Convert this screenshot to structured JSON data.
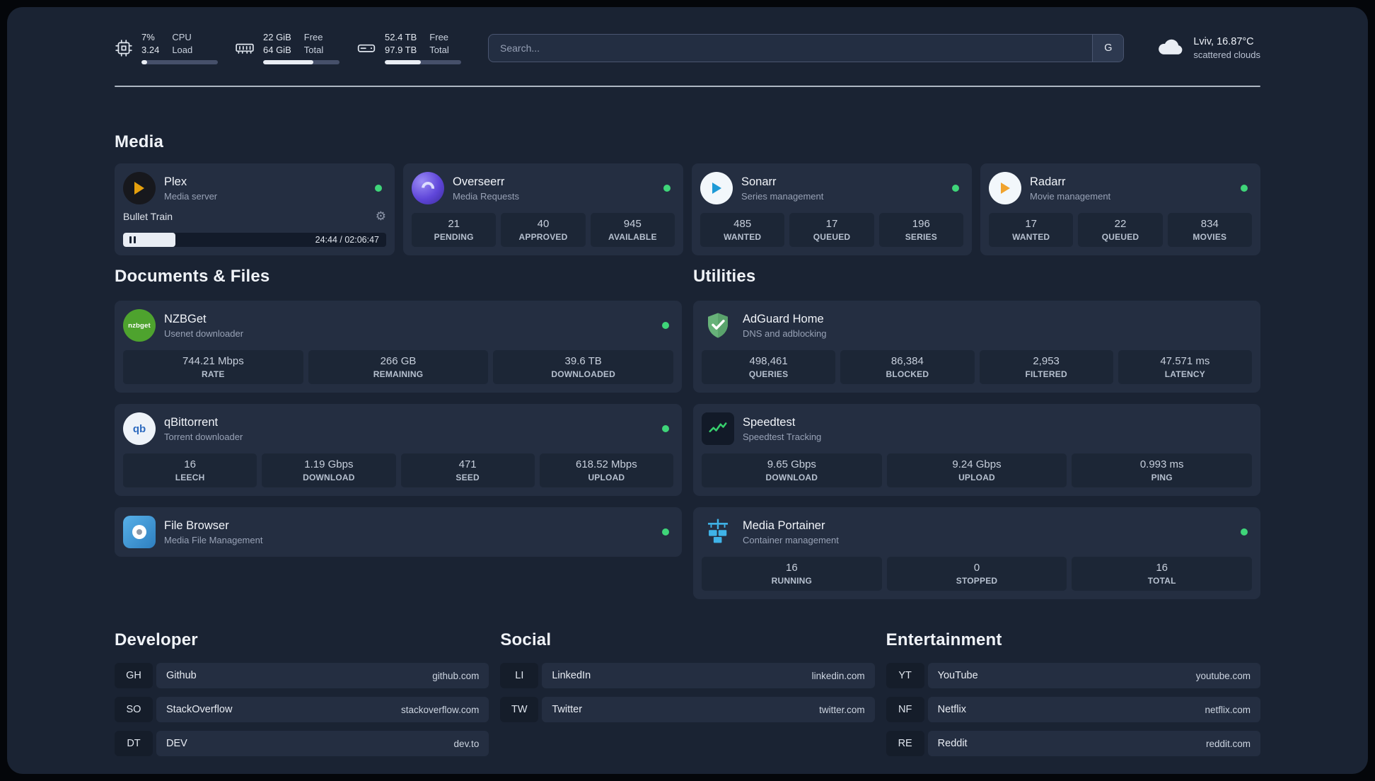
{
  "colors": {
    "status_online": "#3fd579",
    "accent_fill": "#e9edf4"
  },
  "topbar": {
    "cpu": {
      "values": [
        "7%",
        "3.24"
      ],
      "labels": [
        "CPU",
        "Load"
      ],
      "bar_percent": 7
    },
    "memory": {
      "values": [
        "22 GiB",
        "64 GiB"
      ],
      "labels": [
        "Free",
        "Total"
      ],
      "bar_percent": 66
    },
    "disk": {
      "values": [
        "52.4 TB",
        "97.9 TB"
      ],
      "labels": [
        "Free",
        "Total"
      ],
      "bar_percent": 47
    },
    "search": {
      "placeholder": "Search...",
      "provider": "G"
    },
    "weather": {
      "location": "Lviv, 16.87°C",
      "description": "scattered clouds"
    }
  },
  "sections": {
    "media": {
      "title": "Media",
      "plex": {
        "name": "Plex",
        "subtitle": "Media server",
        "now_playing": "Bullet Train",
        "time": "24:44 / 02:06:47",
        "progress_percent": 20
      },
      "overseerr": {
        "name": "Overseerr",
        "subtitle": "Media Requests",
        "stats": [
          {
            "value": "21",
            "label": "PENDING"
          },
          {
            "value": "40",
            "label": "APPROVED"
          },
          {
            "value": "945",
            "label": "AVAILABLE"
          }
        ]
      },
      "sonarr": {
        "name": "Sonarr",
        "subtitle": "Series management",
        "stats": [
          {
            "value": "485",
            "label": "WANTED"
          },
          {
            "value": "17",
            "label": "QUEUED"
          },
          {
            "value": "196",
            "label": "SERIES"
          }
        ]
      },
      "radarr": {
        "name": "Radarr",
        "subtitle": "Movie management",
        "stats": [
          {
            "value": "17",
            "label": "WANTED"
          },
          {
            "value": "22",
            "label": "QUEUED"
          },
          {
            "value": "834",
            "label": "MOVIES"
          }
        ]
      }
    },
    "documents": {
      "title": "Documents & Files",
      "nzbget": {
        "name": "NZBGet",
        "subtitle": "Usenet downloader",
        "icon_text": "nzbget",
        "stats": [
          {
            "value": "744.21 Mbps",
            "label": "RATE"
          },
          {
            "value": "266 GB",
            "label": "REMAINING"
          },
          {
            "value": "39.6 TB",
            "label": "DOWNLOADED"
          }
        ]
      },
      "qbittorrent": {
        "name": "qBittorrent",
        "subtitle": "Torrent downloader",
        "icon_text": "qb",
        "stats": [
          {
            "value": "16",
            "label": "LEECH"
          },
          {
            "value": "1.19 Gbps",
            "label": "DOWNLOAD"
          },
          {
            "value": "471",
            "label": "SEED"
          },
          {
            "value": "618.52 Mbps",
            "label": "UPLOAD"
          }
        ]
      },
      "filebrowser": {
        "name": "File Browser",
        "subtitle": "Media File Management"
      }
    },
    "utilities": {
      "title": "Utilities",
      "adguard": {
        "name": "AdGuard Home",
        "subtitle": "DNS and adblocking",
        "stats": [
          {
            "value": "498,461",
            "label": "QUERIES"
          },
          {
            "value": "86,384",
            "label": "BLOCKED"
          },
          {
            "value": "2,953",
            "label": "FILTERED"
          },
          {
            "value": "47.571 ms",
            "label": "LATENCY"
          }
        ]
      },
      "speedtest": {
        "name": "Speedtest",
        "subtitle": "Speedtest Tracking",
        "stats": [
          {
            "value": "9.65 Gbps",
            "label": "DOWNLOAD"
          },
          {
            "value": "9.24 Gbps",
            "label": "UPLOAD"
          },
          {
            "value": "0.993 ms",
            "label": "PING"
          }
        ]
      },
      "portainer": {
        "name": "Media Portainer",
        "subtitle": "Container management",
        "stats": [
          {
            "value": "16",
            "label": "RUNNING"
          },
          {
            "value": "0",
            "label": "STOPPED"
          },
          {
            "value": "16",
            "label": "TOTAL"
          }
        ]
      }
    },
    "bookmarks": [
      {
        "title": "Developer",
        "items": [
          {
            "abbr": "GH",
            "name": "Github",
            "url": "github.com"
          },
          {
            "abbr": "SO",
            "name": "StackOverflow",
            "url": "stackoverflow.com"
          },
          {
            "abbr": "DT",
            "name": "DEV",
            "url": "dev.to"
          }
        ]
      },
      {
        "title": "Social",
        "items": [
          {
            "abbr": "LI",
            "name": "LinkedIn",
            "url": "linkedin.com"
          },
          {
            "abbr": "TW",
            "name": "Twitter",
            "url": "twitter.com"
          }
        ]
      },
      {
        "title": "Entertainment",
        "items": [
          {
            "abbr": "YT",
            "name": "YouTube",
            "url": "youtube.com"
          },
          {
            "abbr": "NF",
            "name": "Netflix",
            "url": "netflix.com"
          },
          {
            "abbr": "RE",
            "name": "Reddit",
            "url": "reddit.com"
          }
        ]
      }
    ]
  }
}
